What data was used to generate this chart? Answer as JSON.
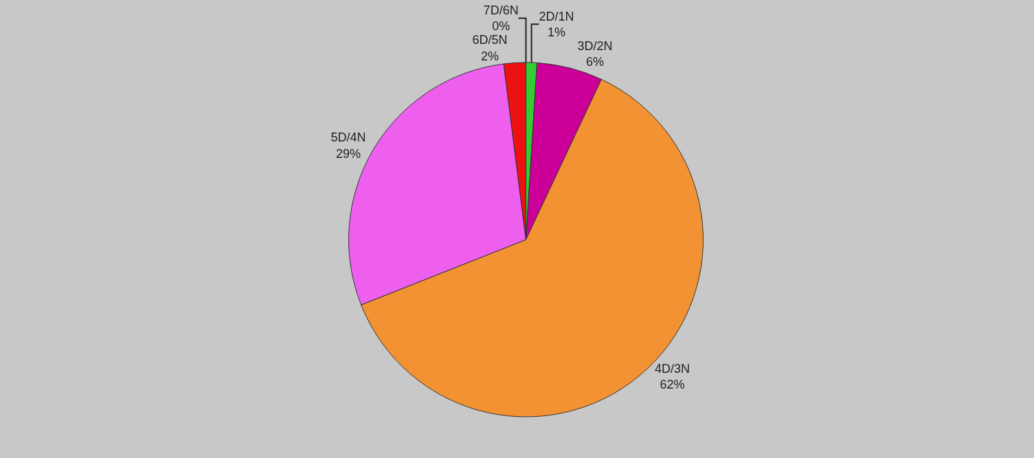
{
  "chart_data": {
    "type": "pie",
    "categories": [
      "2D/1N",
      "3D/2N",
      "4D/3N",
      "5D/4N",
      "6D/5N",
      "7D/6N"
    ],
    "values": [
      1,
      6,
      62,
      29,
      2,
      0
    ],
    "value_labels": [
      "1%",
      "6%",
      "62%",
      "29%",
      "2%",
      "0%"
    ],
    "colors": [
      "#33cc33",
      "#cc0099",
      "#f39233",
      "#ee5fee",
      "#ee1111",
      "#ffff00"
    ],
    "legend": false
  }
}
